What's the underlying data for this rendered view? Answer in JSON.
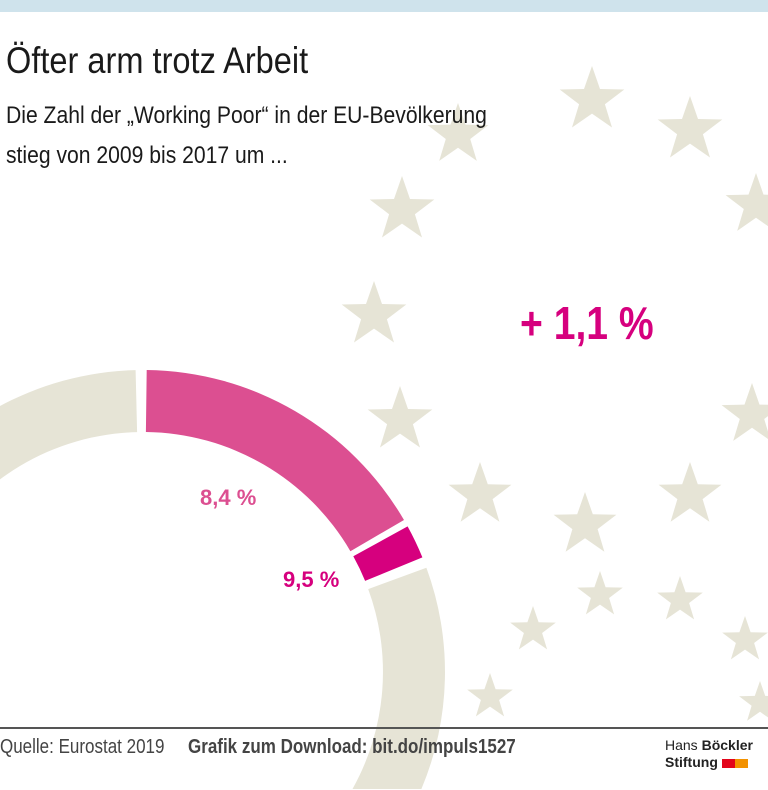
{
  "title": "Öfter arm trotz Arbeit",
  "subtitle_line1": "Die Zahl der „Working Poor“ in der EU-Bevölkerung",
  "subtitle_line2": "stieg von 2009 bis 2017 um ...",
  "highlight": "+ 1,1 %",
  "footer": {
    "source": "Quelle: Eurostat 2019",
    "download": "Grafik zum Download: bit.do/impuls1527",
    "logo_line1_a": "Hans",
    "logo_line1_b": "Böckler",
    "logo_line2": "Stiftung"
  },
  "colors": {
    "value_2009": "#dc4f91",
    "increase": "#d6007e",
    "track": "#e6e4d6",
    "stars": "#e6e4d6",
    "top_bar": "#cfe3ec",
    "logo_red": "#e3051b",
    "logo_orange": "#f39200"
  },
  "chart_data": {
    "type": "donut",
    "series": [
      {
        "label": "8,4 %",
        "value": 8.4,
        "year": 2009
      },
      {
        "label": "9,5 %",
        "value": 9.5,
        "year": 2017
      }
    ],
    "increase": 1.1,
    "icon_background": "eu-stars"
  }
}
